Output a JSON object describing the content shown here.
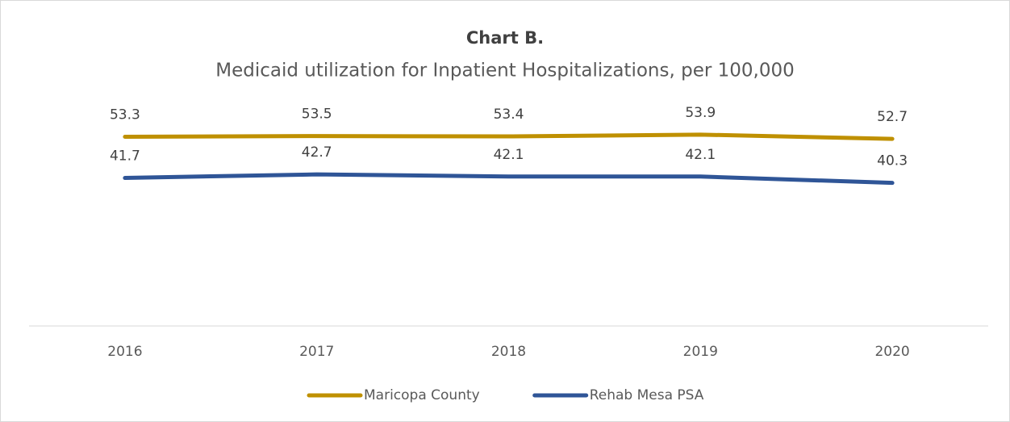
{
  "chart_data": {
    "type": "line",
    "title": "Chart B.",
    "subtitle": "Medicaid utilization for Inpatient Hospitalizations, per 100,000",
    "categories": [
      "2016",
      "2017",
      "2018",
      "2019",
      "2020"
    ],
    "series": [
      {
        "name": "Maricopa County",
        "color": "#bf9000",
        "values": [
          53.3,
          53.5,
          53.4,
          53.9,
          52.7
        ]
      },
      {
        "name": "Rehab Mesa PSA",
        "color": "#2f5597",
        "values": [
          41.7,
          42.7,
          42.1,
          42.1,
          40.3
        ]
      }
    ],
    "ylim": [
      0,
      60
    ],
    "legend": "bottom"
  }
}
